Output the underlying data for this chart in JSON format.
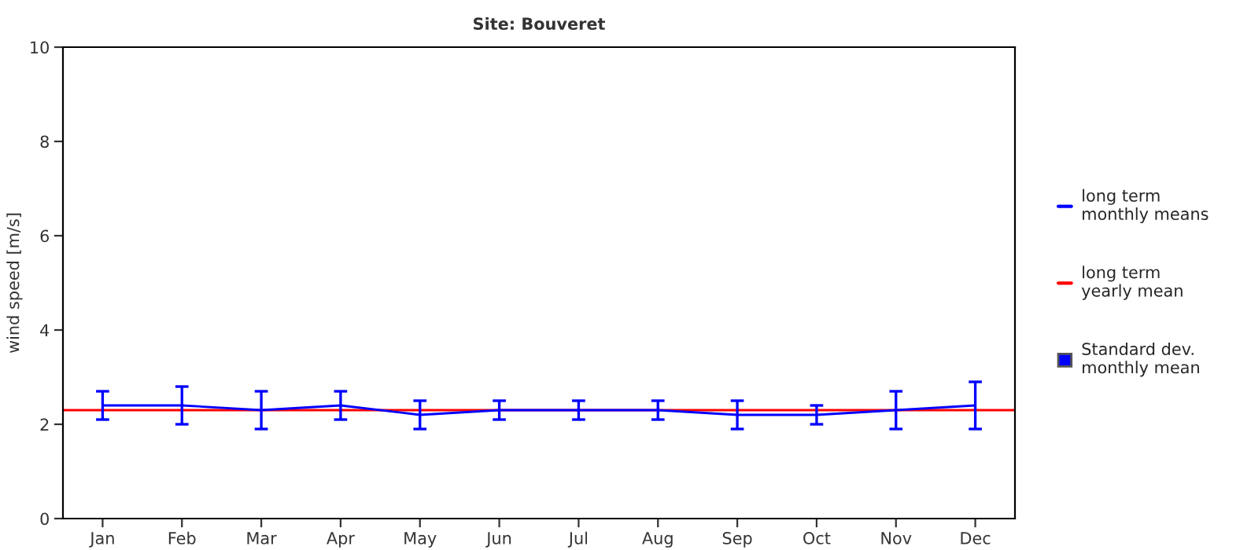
{
  "chart_data": {
    "type": "line",
    "title": "Site: Bouveret",
    "ylabel": "wind speed [m/s]",
    "categories": [
      "Jan",
      "Feb",
      "Mar",
      "Apr",
      "May",
      "Jun",
      "Jul",
      "Aug",
      "Sep",
      "Oct",
      "Nov",
      "Dec"
    ],
    "series": [
      {
        "name": "long term\nmonthly means",
        "color": "#0000ff",
        "values": [
          2.4,
          2.4,
          2.3,
          2.4,
          2.2,
          2.3,
          2.3,
          2.3,
          2.2,
          2.2,
          2.3,
          2.4
        ],
        "errors": [
          0.3,
          0.4,
          0.4,
          0.3,
          0.3,
          0.2,
          0.2,
          0.2,
          0.3,
          0.2,
          0.4,
          0.5
        ]
      }
    ],
    "ref_lines": [
      {
        "axis": "y",
        "value": 2.3,
        "label": "long term\nyearly mean",
        "color": "#ff0000"
      }
    ],
    "annotations": [
      "Standard dev.\nmonthly mean"
    ],
    "ylim": [
      0,
      10
    ],
    "yticks": [
      0,
      2,
      4,
      6,
      8,
      10
    ],
    "grid": false,
    "legend": "right",
    "marker": "none",
    "line_style": "solid"
  }
}
